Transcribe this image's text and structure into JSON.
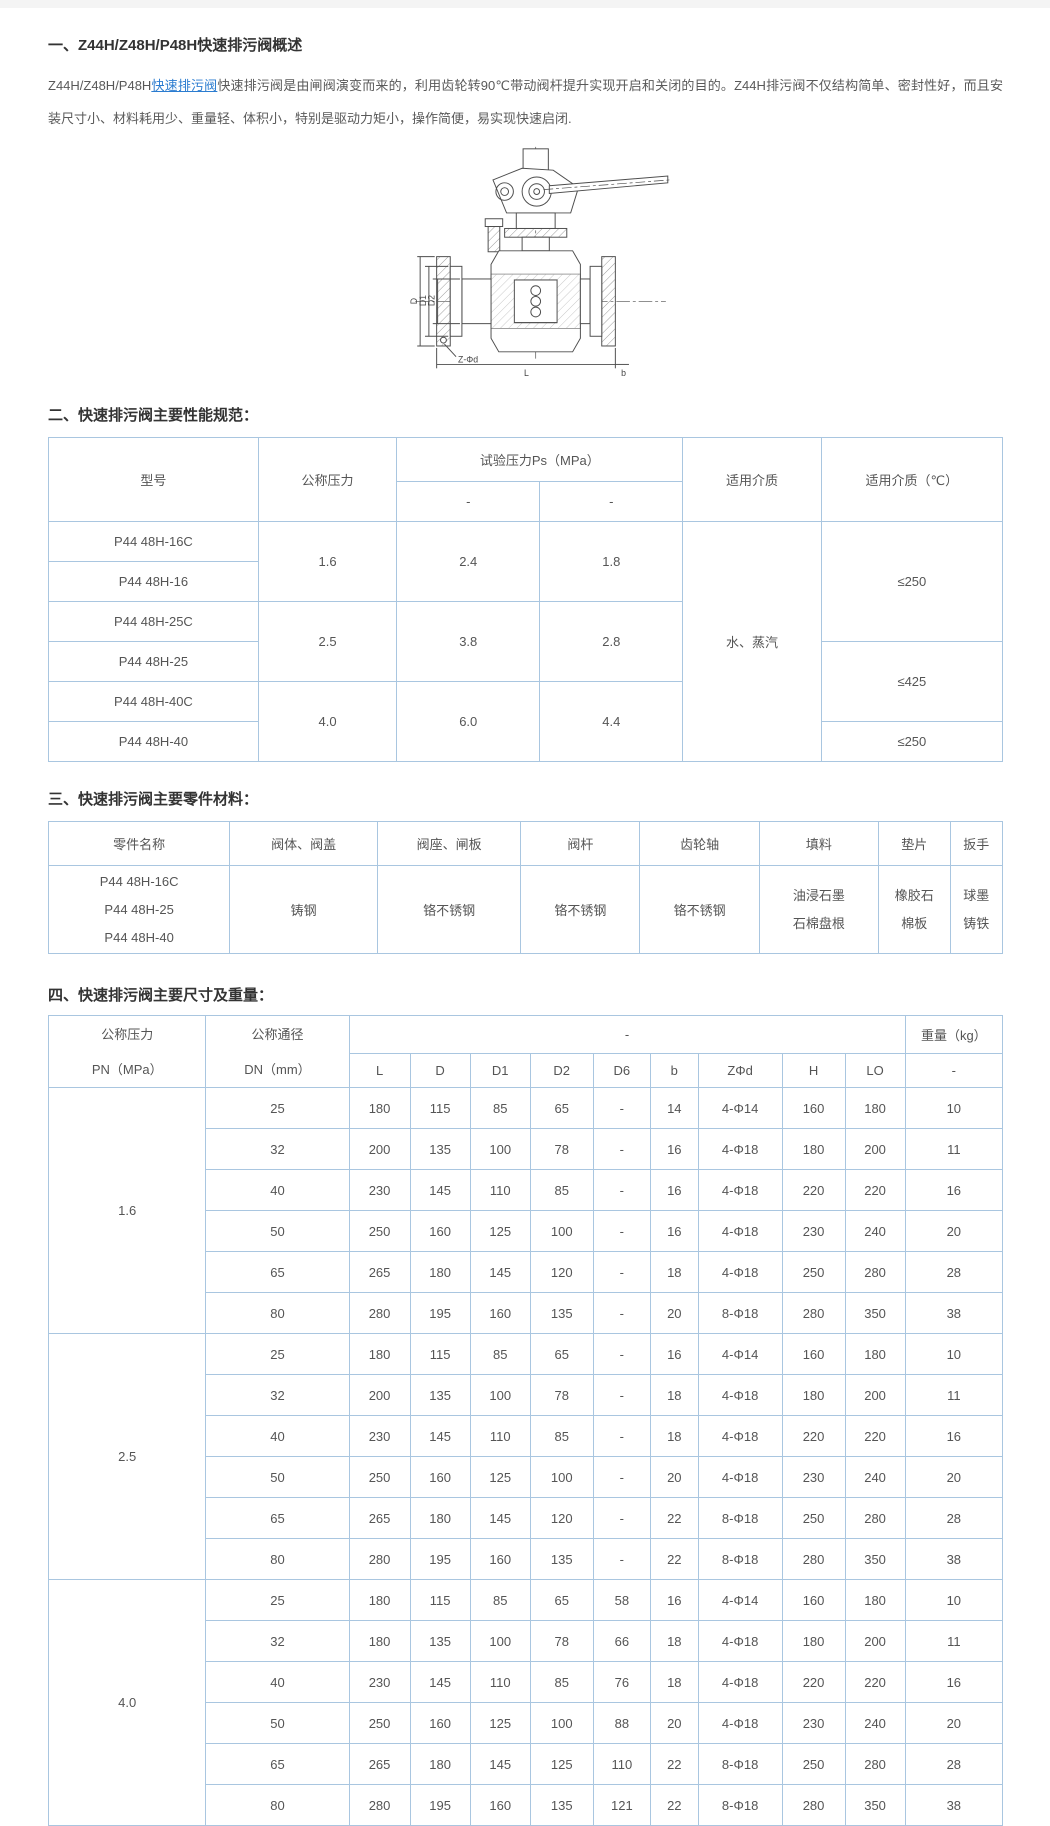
{
  "colors": {
    "table_border": "#a9c6e0",
    "link_blue": "#2b7cd0",
    "heading_dark": "#333333",
    "text_gray": "#595959"
  },
  "intro": {
    "heading": "一、Z44H/Z48H/P48H快速排污阀概述",
    "before_link": "Z44H/Z48H/P48H",
    "link": "快速排污阀",
    "after_link": "快速排污阀是由闸阀演变而来的，利用齿轮转90℃带动阀杆提升实现开启和关闭的目的。Z44H排污阀不仅结构简单、密封性好，而且安装尺寸小、材料耗用少、重量轻、体积小，特别是驱动力矩小，操作简便，易实现快速启闭."
  },
  "drawing": {
    "labels": {
      "d": "D",
      "d1": "D1",
      "d2": "D2",
      "l": "L",
      "zfd": "Z-Φd",
      "b": "b"
    }
  },
  "perf": {
    "heading": "二、快速排污阀主要性能规范：",
    "col_model": "型号",
    "col_pn": "公称压力",
    "col_test": "试验压力Ps（MPa）",
    "col_test_sub1": "-",
    "col_test_sub2": "-",
    "col_medium": "适用介质",
    "col_temp": "适用介质（℃）",
    "models": [
      "P44 48H-16C",
      "P44 48H-16",
      "P44 48H-25C",
      "P44 48H-25",
      "P44 48H-40C",
      "P44 48H-40"
    ],
    "pn": [
      "1.6",
      "2.5",
      "4.0"
    ],
    "test1": [
      "2.4",
      "3.8",
      "6.0"
    ],
    "test2": [
      "1.8",
      "2.8",
      "4.4"
    ],
    "medium": "水、蒸汽",
    "temps": [
      "≤250",
      "≤425",
      "≤250"
    ]
  },
  "materials": {
    "heading": "三、快速排污阀主要零件材料：",
    "headers": [
      "零件名称",
      "阀体、阀盖",
      "阀座、闸板",
      "阀杆",
      "齿轮轴",
      "填料",
      "垫片",
      "扳手"
    ],
    "models": [
      "P44 48H-16C",
      "P44 48H-25",
      "P44 48H-40"
    ],
    "body_bonnet": "铸钢",
    "seat_gate": "铬不锈钢",
    "stem": "铬不锈钢",
    "gear_shaft": "铬不锈钢",
    "packing": [
      "油浸石墨",
      "石棉盘根"
    ],
    "gasket": [
      "橡胶石",
      "棉板"
    ],
    "wrench": [
      "球墨",
      "铸铁"
    ]
  },
  "dims": {
    "heading": "四、快速排污阀主要尺寸及重量：",
    "col_pn_l1": "公称压力",
    "col_pn_l2": "PN（MPa）",
    "col_dn_l1": "公称通径",
    "col_dn_l2": "DN（mm）",
    "col_span": "-",
    "sub_cols": [
      "L",
      "D",
      "D1",
      "D2",
      "D6",
      "b",
      "ZΦd",
      "H",
      "LO"
    ],
    "col_weight": "重量（kg）",
    "col_weight_sub": "-",
    "groups": [
      {
        "pn": "1.6",
        "rows": [
          [
            "25",
            "180",
            "115",
            "85",
            "65",
            "-",
            "14",
            "4-Φ14",
            "160",
            "180",
            "10"
          ],
          [
            "32",
            "200",
            "135",
            "100",
            "78",
            "-",
            "16",
            "4-Φ18",
            "180",
            "200",
            "11"
          ],
          [
            "40",
            "230",
            "145",
            "110",
            "85",
            "-",
            "16",
            "4-Φ18",
            "220",
            "220",
            "16"
          ],
          [
            "50",
            "250",
            "160",
            "125",
            "100",
            "-",
            "16",
            "4-Φ18",
            "230",
            "240",
            "20"
          ],
          [
            "65",
            "265",
            "180",
            "145",
            "120",
            "-",
            "18",
            "4-Φ18",
            "250",
            "280",
            "28"
          ],
          [
            "80",
            "280",
            "195",
            "160",
            "135",
            "-",
            "20",
            "8-Φ18",
            "280",
            "350",
            "38"
          ]
        ]
      },
      {
        "pn": "2.5",
        "rows": [
          [
            "25",
            "180",
            "115",
            "85",
            "65",
            "-",
            "16",
            "4-Φ14",
            "160",
            "180",
            "10"
          ],
          [
            "32",
            "200",
            "135",
            "100",
            "78",
            "-",
            "18",
            "4-Φ18",
            "180",
            "200",
            "11"
          ],
          [
            "40",
            "230",
            "145",
            "110",
            "85",
            "-",
            "18",
            "4-Φ18",
            "220",
            "220",
            "16"
          ],
          [
            "50",
            "250",
            "160",
            "125",
            "100",
            "-",
            "20",
            "4-Φ18",
            "230",
            "240",
            "20"
          ],
          [
            "65",
            "265",
            "180",
            "145",
            "120",
            "-",
            "22",
            "8-Φ18",
            "250",
            "280",
            "28"
          ],
          [
            "80",
            "280",
            "195",
            "160",
            "135",
            "-",
            "22",
            "8-Φ18",
            "280",
            "350",
            "38"
          ]
        ]
      },
      {
        "pn": "4.0",
        "rows": [
          [
            "25",
            "180",
            "115",
            "85",
            "65",
            "58",
            "16",
            "4-Φ14",
            "160",
            "180",
            "10"
          ],
          [
            "32",
            "180",
            "135",
            "100",
            "78",
            "66",
            "18",
            "4-Φ18",
            "180",
            "200",
            "11"
          ],
          [
            "40",
            "230",
            "145",
            "110",
            "85",
            "76",
            "18",
            "4-Φ18",
            "220",
            "220",
            "16"
          ],
          [
            "50",
            "250",
            "160",
            "125",
            "100",
            "88",
            "20",
            "4-Φ18",
            "230",
            "240",
            "20"
          ],
          [
            "65",
            "265",
            "180",
            "145",
            "125",
            "110",
            "22",
            "8-Φ18",
            "250",
            "280",
            "28"
          ],
          [
            "80",
            "280",
            "195",
            "160",
            "135",
            "121",
            "22",
            "8-Φ18",
            "280",
            "350",
            "38"
          ]
        ]
      }
    ]
  }
}
